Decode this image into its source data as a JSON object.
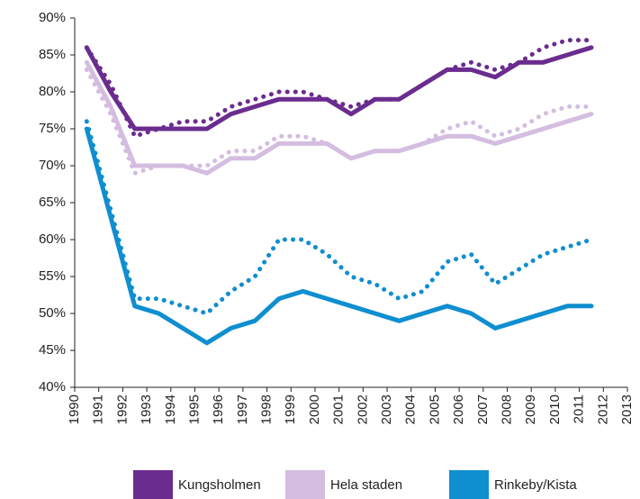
{
  "chart_data": {
    "type": "line",
    "xlim": [
      1990,
      2013
    ],
    "xticks": [
      1990,
      1991,
      1992,
      1993,
      1994,
      1995,
      1996,
      1997,
      1998,
      1999,
      2000,
      2001,
      2002,
      2003,
      2004,
      2005,
      2006,
      2007,
      2008,
      2009,
      2010,
      2011,
      2012,
      2013
    ],
    "x": [
      1990.5,
      1991.5,
      1992.5,
      1993.5,
      1994.5,
      1995.5,
      1996.5,
      1997.5,
      1998.5,
      1999.5,
      2000.5,
      2001.5,
      2002.5,
      2003.5,
      2004.5,
      2005.5,
      2006.5,
      2007.5,
      2008.5,
      2009.5,
      2010.5,
      2011.5
    ],
    "ylim": [
      40,
      90
    ],
    "yticks": [
      {
        "value": 40,
        "label": "40%"
      },
      {
        "value": 45,
        "label": "45%"
      },
      {
        "value": 50,
        "label": "50%"
      },
      {
        "value": 55,
        "label": "55%"
      },
      {
        "value": 60,
        "label": "60%"
      },
      {
        "value": 65,
        "label": "65%"
      },
      {
        "value": 70,
        "label": "70%"
      },
      {
        "value": 75,
        "label": "75%"
      },
      {
        "value": 80,
        "label": "80%"
      },
      {
        "value": 85,
        "label": "85%"
      },
      {
        "value": 90,
        "label": "90%"
      }
    ],
    "series": [
      {
        "name": "Kungsholmen",
        "color": "#6b2c8f",
        "values": [
          86,
          80,
          75,
          75,
          75,
          75,
          77,
          78,
          79,
          79,
          79,
          77,
          79,
          79,
          81,
          83,
          83,
          82,
          84,
          84,
          85,
          86
        ],
        "dotted_values": [
          86,
          81,
          74,
          75,
          76,
          76,
          78,
          79,
          80,
          80,
          79,
          78,
          79,
          79,
          81,
          83,
          84,
          83,
          84,
          86,
          87,
          87
        ]
      },
      {
        "name": "Hela staden",
        "color": "#d4bde0",
        "values": [
          84,
          78,
          70,
          70,
          70,
          69,
          71,
          71,
          73,
          73,
          73,
          71,
          72,
          72,
          73,
          74,
          74,
          73,
          74,
          75,
          76,
          77
        ],
        "dotted_values": [
          83,
          77,
          69,
          70,
          70,
          70,
          72,
          72,
          74,
          74,
          73,
          71,
          72,
          72,
          73,
          75,
          76,
          74,
          75,
          77,
          78,
          78
        ]
      },
      {
        "name": "Rinkeby/Kista",
        "color": "#0f8ed0",
        "values": [
          75,
          63,
          51,
          50,
          48,
          46,
          48,
          49,
          52,
          53,
          52,
          51,
          50,
          49,
          50,
          51,
          50,
          48,
          49,
          50,
          51,
          51
        ],
        "dotted_values": [
          76,
          64,
          52,
          52,
          51,
          50,
          53,
          55,
          60,
          60,
          58,
          55,
          54,
          52,
          53,
          57,
          58,
          54,
          56,
          58,
          59,
          60
        ]
      }
    ]
  }
}
